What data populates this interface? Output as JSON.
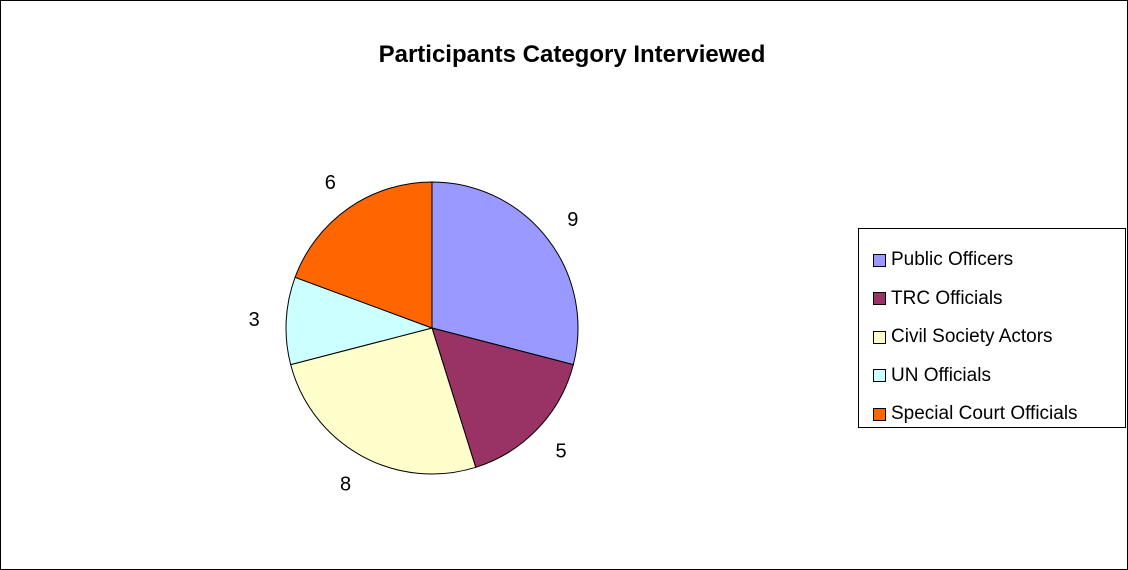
{
  "chart_data": {
    "type": "pie",
    "title": "Participants Category Interviewed",
    "categories": [
      "Public Officers",
      "TRC Officials",
      "Civil Society Actors",
      "UN Officials",
      "Special Court Officials"
    ],
    "values": [
      9,
      5,
      8,
      3,
      6
    ],
    "colors": [
      "#9999FF",
      "#993366",
      "#FFFFCC",
      "#CCFFFF",
      "#FF6600"
    ],
    "data_labels": [
      "9",
      "5",
      "8",
      "3",
      "6"
    ],
    "legend_placement": "right"
  }
}
